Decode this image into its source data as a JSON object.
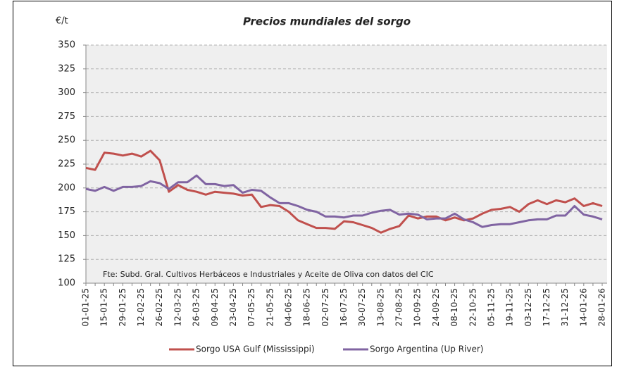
{
  "chart_data": {
    "type": "line",
    "title": "Precios mundiales del sorgo",
    "y_label": "€/t",
    "annotation": "Fte: Subd. Gral. Cultivos Herbáceos e Industriales y Aceite de Oliva con datos del CIC",
    "categories": [
      "01-01-25",
      null,
      "15-01-25",
      null,
      "29-01-25",
      null,
      "12-02-25",
      null,
      "26-02-25",
      null,
      "12-03-25",
      null,
      "26-03-25",
      null,
      "09-04-25",
      null,
      "23-04-25",
      null,
      "07-05-25",
      null,
      "21-05-25",
      null,
      "04-06-25",
      null,
      "18-06-25",
      null,
      "02-07-25",
      null,
      "16-07-25",
      null,
      "30-07-25",
      null,
      "13-08-25",
      null,
      "27-08-25",
      null,
      "10-09-25",
      null,
      "24-09-25",
      null,
      "08-10-25",
      null,
      "22-10-25",
      null,
      "05-11-25",
      null,
      "19-11-25",
      null,
      "03-12-25",
      null,
      "17-12-25",
      null,
      "31-12-25",
      null,
      "14-01-26",
      null,
      "28-01-26"
    ],
    "series": [
      {
        "name": "Sorgo USA Gulf (Mississippi)",
        "color": "#c0504d",
        "values": [
          221,
          219,
          237,
          236,
          234,
          236,
          233,
          239,
          229,
          196,
          203,
          198,
          196,
          193,
          196,
          195,
          194,
          192,
          193,
          180,
          182,
          181,
          175,
          166,
          162,
          158,
          158,
          157,
          165,
          164,
          161,
          158,
          153,
          157,
          160,
          171,
          168,
          170,
          170,
          166,
          169,
          166,
          168,
          173,
          177,
          178,
          180,
          175,
          183,
          187,
          183,
          187,
          185,
          189,
          181,
          184,
          181
        ]
      },
      {
        "name": "Sorgo Argentina (Up River)",
        "color": "#8064a2",
        "values": [
          199,
          197,
          201,
          197,
          201,
          201,
          202,
          207,
          205,
          199,
          206,
          206,
          213,
          204,
          204,
          202,
          203,
          195,
          198,
          197,
          190,
          184,
          184,
          181,
          177,
          175,
          170,
          170,
          169,
          171,
          171,
          174,
          176,
          177,
          172,
          173,
          172,
          167,
          168,
          168,
          173,
          167,
          164,
          159,
          161,
          162,
          162,
          164,
          166,
          167,
          167,
          171,
          171,
          181,
          172,
          170,
          167
        ]
      }
    ],
    "ylim": [
      100,
      350
    ],
    "yticks": [
      100,
      125,
      150,
      175,
      200,
      225,
      250,
      275,
      300,
      325,
      350
    ],
    "grid": true
  }
}
